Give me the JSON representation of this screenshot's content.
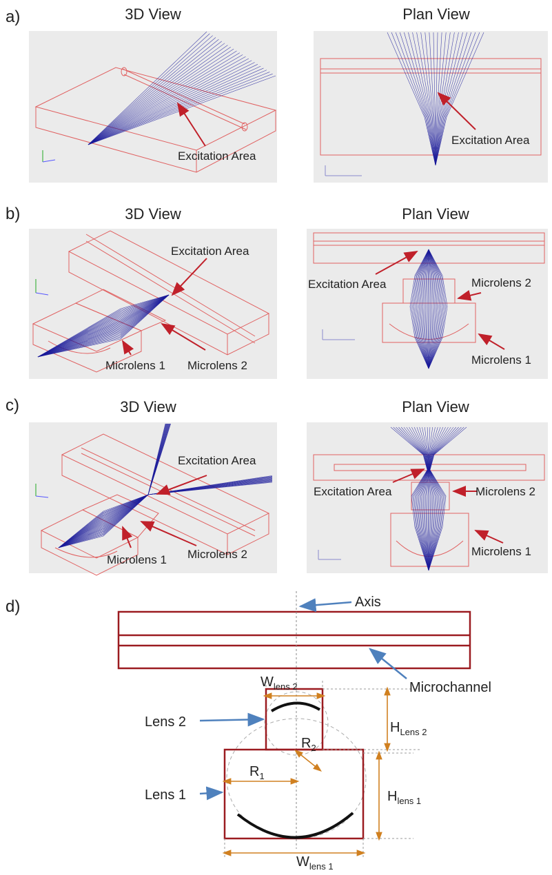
{
  "panels": [
    {
      "label": "a)",
      "views": [
        {
          "title": "3D View",
          "annotations": [
            "Excitation Area"
          ]
        },
        {
          "title": "Plan View",
          "annotations": [
            "Excitation Area"
          ]
        }
      ]
    },
    {
      "label": "b)",
      "views": [
        {
          "title": "3D View",
          "annotations": [
            "Excitation Area",
            "Microlens 1",
            "Microlens 2"
          ]
        },
        {
          "title": "Plan View",
          "annotations": [
            "Excitation Area",
            "Microlens 2",
            "Microlens 1"
          ]
        }
      ]
    },
    {
      "label": "c)",
      "views": [
        {
          "title": "3D View",
          "annotations": [
            "Excitation Area",
            "Microlens 1",
            "Microlens 2"
          ]
        },
        {
          "title": "Plan View",
          "annotations": [
            "Excitation Area",
            "Microlens 2",
            "Microlens 1"
          ]
        }
      ]
    }
  ],
  "schematic": {
    "label": "d)",
    "axis": "Axis",
    "microchannel": "Microchannel",
    "lens2": "Lens 2",
    "lens1": "Lens 1",
    "w_lens2": {
      "symbol": "W",
      "subscript": "lens 2"
    },
    "r2": {
      "symbol": "R",
      "subscript": "2"
    },
    "h_lens2": {
      "symbol": "H",
      "subscript": "Lens 2"
    },
    "r1": {
      "symbol": "R",
      "subscript": "1"
    },
    "h_lens1": {
      "symbol": "H",
      "subscript": "lens 1"
    },
    "w_lens1": {
      "symbol": "W",
      "subscript": "lens 1"
    }
  }
}
